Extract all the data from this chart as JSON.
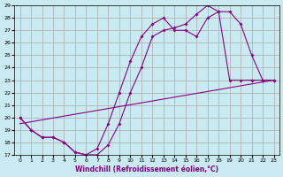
{
  "bg_color": "#c8eaf0",
  "grid_color": "#aaaaaa",
  "line_color": "#880088",
  "xlabel": "Windchill (Refroidissement éolien,°C)",
  "xlim": [
    -0.5,
    23.5
  ],
  "ylim": [
    17,
    29
  ],
  "yticks": [
    17,
    18,
    19,
    20,
    21,
    22,
    23,
    24,
    25,
    26,
    27,
    28,
    29
  ],
  "xticks": [
    0,
    1,
    2,
    3,
    4,
    5,
    6,
    7,
    8,
    9,
    10,
    11,
    12,
    13,
    14,
    15,
    16,
    17,
    18,
    19,
    20,
    21,
    22,
    23
  ],
  "series": [
    {
      "x": [
        0,
        1,
        2,
        3,
        4,
        5,
        6,
        7,
        8,
        9,
        10,
        11,
        12,
        13,
        14,
        15,
        16,
        17,
        18,
        19,
        20,
        21,
        22,
        23
      ],
      "y": [
        20.0,
        19.0,
        18.4,
        18.4,
        18.0,
        17.2,
        17.0,
        17.0,
        17.8,
        19.5,
        22.0,
        24.0,
        26.5,
        27.0,
        27.2,
        27.5,
        28.3,
        29.0,
        28.5,
        28.5,
        27.5,
        25.0,
        23.0,
        23.0
      ],
      "marker": true
    },
    {
      "x": [
        0,
        1,
        2,
        3,
        4,
        5,
        6,
        7,
        8,
        9,
        10,
        11,
        12,
        13,
        14,
        15,
        16,
        17,
        18,
        19,
        20,
        21,
        22,
        23
      ],
      "y": [
        20.0,
        19.0,
        18.4,
        18.4,
        18.0,
        17.2,
        17.0,
        17.5,
        19.5,
        22.0,
        24.5,
        26.5,
        27.5,
        28.0,
        27.0,
        27.0,
        26.5,
        28.0,
        28.5,
        23.0,
        23.0,
        23.0,
        23.0,
        23.0
      ],
      "marker": true
    },
    {
      "x": [
        0,
        23
      ],
      "y": [
        19.5,
        23.0
      ],
      "marker": false
    }
  ]
}
